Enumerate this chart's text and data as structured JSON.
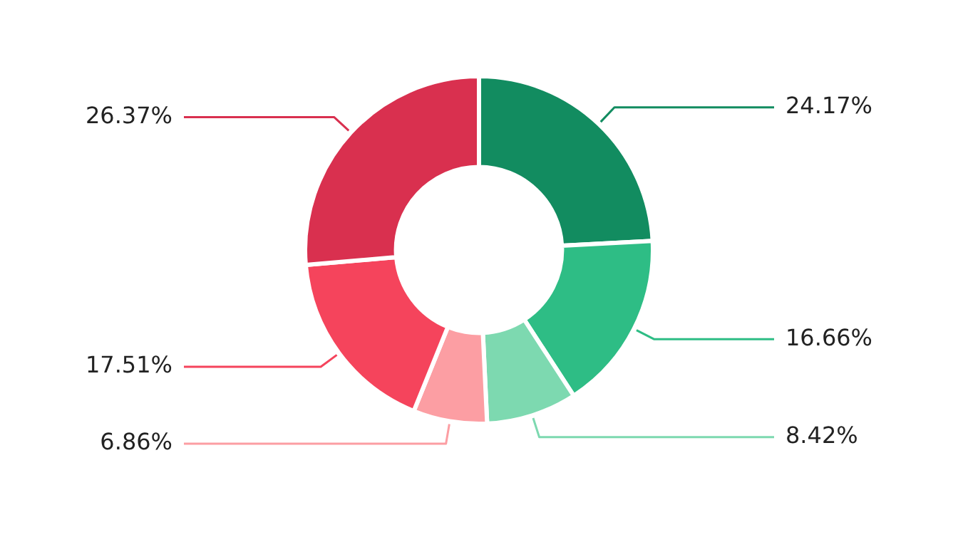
{
  "chart_data": {
    "type": "donut",
    "categories": [
      null,
      null,
      null,
      null,
      null,
      null
    ],
    "values": [
      24.17,
      16.66,
      8.42,
      6.86,
      17.51,
      26.37
    ],
    "colors": [
      "#128c60",
      "#2ebd85",
      "#7dd9b0",
      "#fc9ea3",
      "#f5445c",
      "#d9304f"
    ],
    "value_labels": [
      "24.17%",
      "16.66%",
      "8.42%",
      "6.86%",
      "17.51%",
      "26.37%"
    ],
    "legend": false
  }
}
